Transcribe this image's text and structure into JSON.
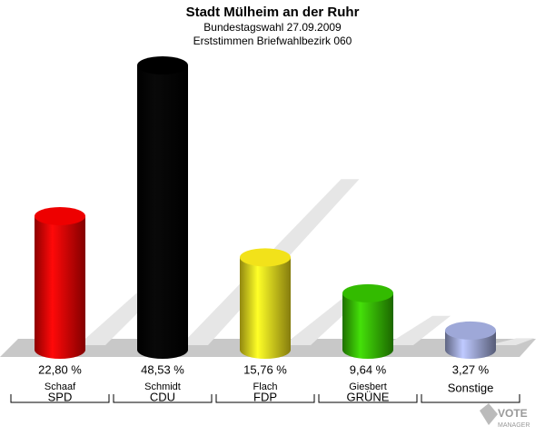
{
  "chart_data": {
    "type": "bar",
    "title": "Stadt Mülheim an der Ruhr",
    "subtitle": "Bundestagswahl 27.09.2009",
    "subtitle2": "Erststimmen Briefwahlbezirk 060",
    "categories": [
      "SPD",
      "CDU",
      "FDP",
      "GRÜNE",
      "Sonstige"
    ],
    "candidates": [
      "Schaaf",
      "Schmidt",
      "Flach",
      "Giesbert",
      null
    ],
    "values": [
      22.8,
      48.53,
      15.76,
      9.64,
      3.27
    ],
    "value_labels": [
      "22,80 %",
      "48,53 %",
      "15,76 %",
      "9,64 %",
      "3,27 %"
    ],
    "colors": [
      "#ee0000",
      "#000000",
      "#f2e21a",
      "#33bb00",
      "#9ea8d8"
    ]
  },
  "logo": {
    "line1": "VOTE",
    "line2": "MANAGER"
  }
}
